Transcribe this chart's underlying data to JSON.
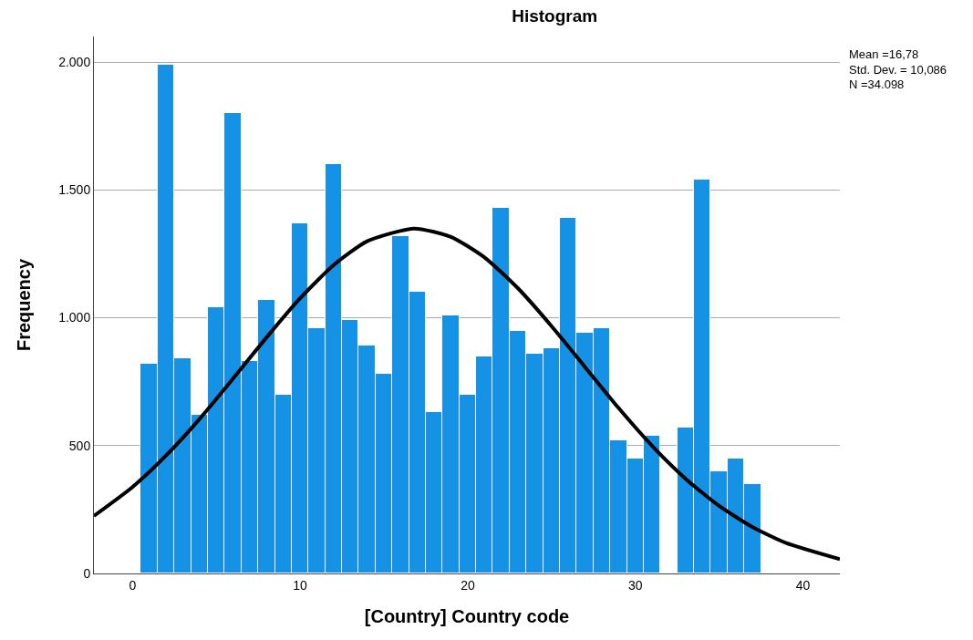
{
  "chart_data": {
    "type": "histogram",
    "title": "Histogram",
    "xlabel": "[Country] Country code",
    "ylabel": "Frequency",
    "bins": [
      0.5,
      1.5,
      2.5,
      3.5,
      4.5,
      5.5,
      6.5,
      7.5,
      8.5,
      9.5,
      10.5,
      11.5,
      12.5,
      13.5,
      14.5,
      15.5,
      16.5,
      17.5,
      18.5,
      19.5,
      20.5,
      21.5,
      22.5,
      23.5,
      24.5,
      25.5,
      26.5,
      27.5,
      28.5,
      29.5,
      30.5,
      31.5,
      32.5,
      33.5,
      34.5,
      35.5,
      36.5,
      37.5
    ],
    "values": [
      820,
      1990,
      840,
      620,
      1040,
      1800,
      830,
      1070,
      700,
      1370,
      960,
      1600,
      990,
      890,
      780,
      1320,
      1100,
      630,
      1010,
      700,
      850,
      1430,
      950,
      860,
      880,
      1390,
      940,
      960,
      520,
      450,
      540,
      0,
      570,
      1540,
      400,
      450,
      350
    ],
    "color": "#1591e6",
    "series": [
      {
        "type": "line",
        "color": "#000000",
        "x": [
          -2.3,
          0,
          2,
          4,
          6,
          8,
          10,
          12,
          14,
          16.78,
          19,
          21,
          23,
          25,
          27,
          29,
          31,
          33,
          35,
          37,
          39,
          42.2
        ],
        "values": [
          225,
          338,
          461,
          604,
          762,
          923,
          1076,
          1206,
          1299,
          1349,
          1316,
          1236,
          1115,
          967,
          807,
          647,
          499,
          370,
          264,
          181,
          119,
          56
        ]
      }
    ],
    "xlim": [
      -2.3,
      42.2
    ],
    "xticks": [
      0,
      10,
      20,
      30,
      40
    ],
    "ylim": [
      0,
      2100
    ],
    "yticks": [
      0,
      500,
      {
        "value": 1000,
        "label": "1.000"
      },
      {
        "value": 1500,
        "label": "1.500"
      },
      {
        "value": 2000,
        "label": "2.000"
      }
    ],
    "grid": "y",
    "annotations": [
      "Mean =16,78",
      "Std. Dev. = 10,086",
      "N =34.098"
    ]
  }
}
